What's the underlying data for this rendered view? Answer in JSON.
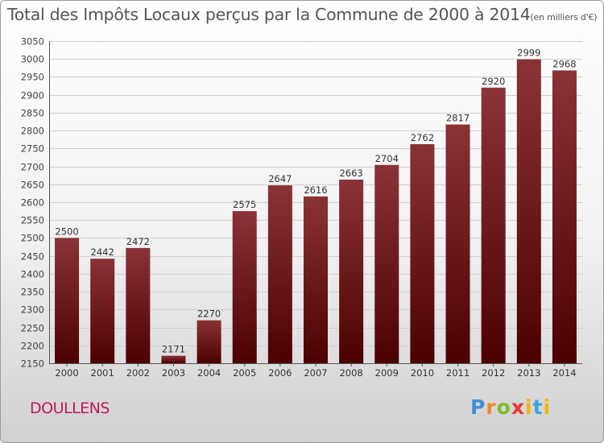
{
  "title": "Total des Impôts Locaux perçus par la Commune de 2000 à 2014",
  "unit_label": "(en milliers d'€)",
  "commune": "DOULLENS",
  "logo_text": "Proxiti",
  "colors": {
    "bar_top": "#8a3336",
    "bar_bottom": "#4d0000",
    "grid": "#cfcfcf",
    "commune": "#c2185b"
  },
  "chart_data": {
    "type": "bar",
    "title": "Total des Impôts Locaux perçus par la Commune de 2000 à 2014",
    "xlabel": "",
    "ylabel": "",
    "categories": [
      "2000",
      "2001",
      "2002",
      "2003",
      "2004",
      "2005",
      "2006",
      "2007",
      "2008",
      "2009",
      "2010",
      "2011",
      "2012",
      "2013",
      "2014"
    ],
    "values": [
      2500,
      2442,
      2472,
      2171,
      2270,
      2575,
      2647,
      2616,
      2663,
      2704,
      2762,
      2817,
      2920,
      2999,
      2968
    ],
    "ylim": [
      2150,
      3050
    ],
    "ytick_step": 50,
    "grid": true
  }
}
